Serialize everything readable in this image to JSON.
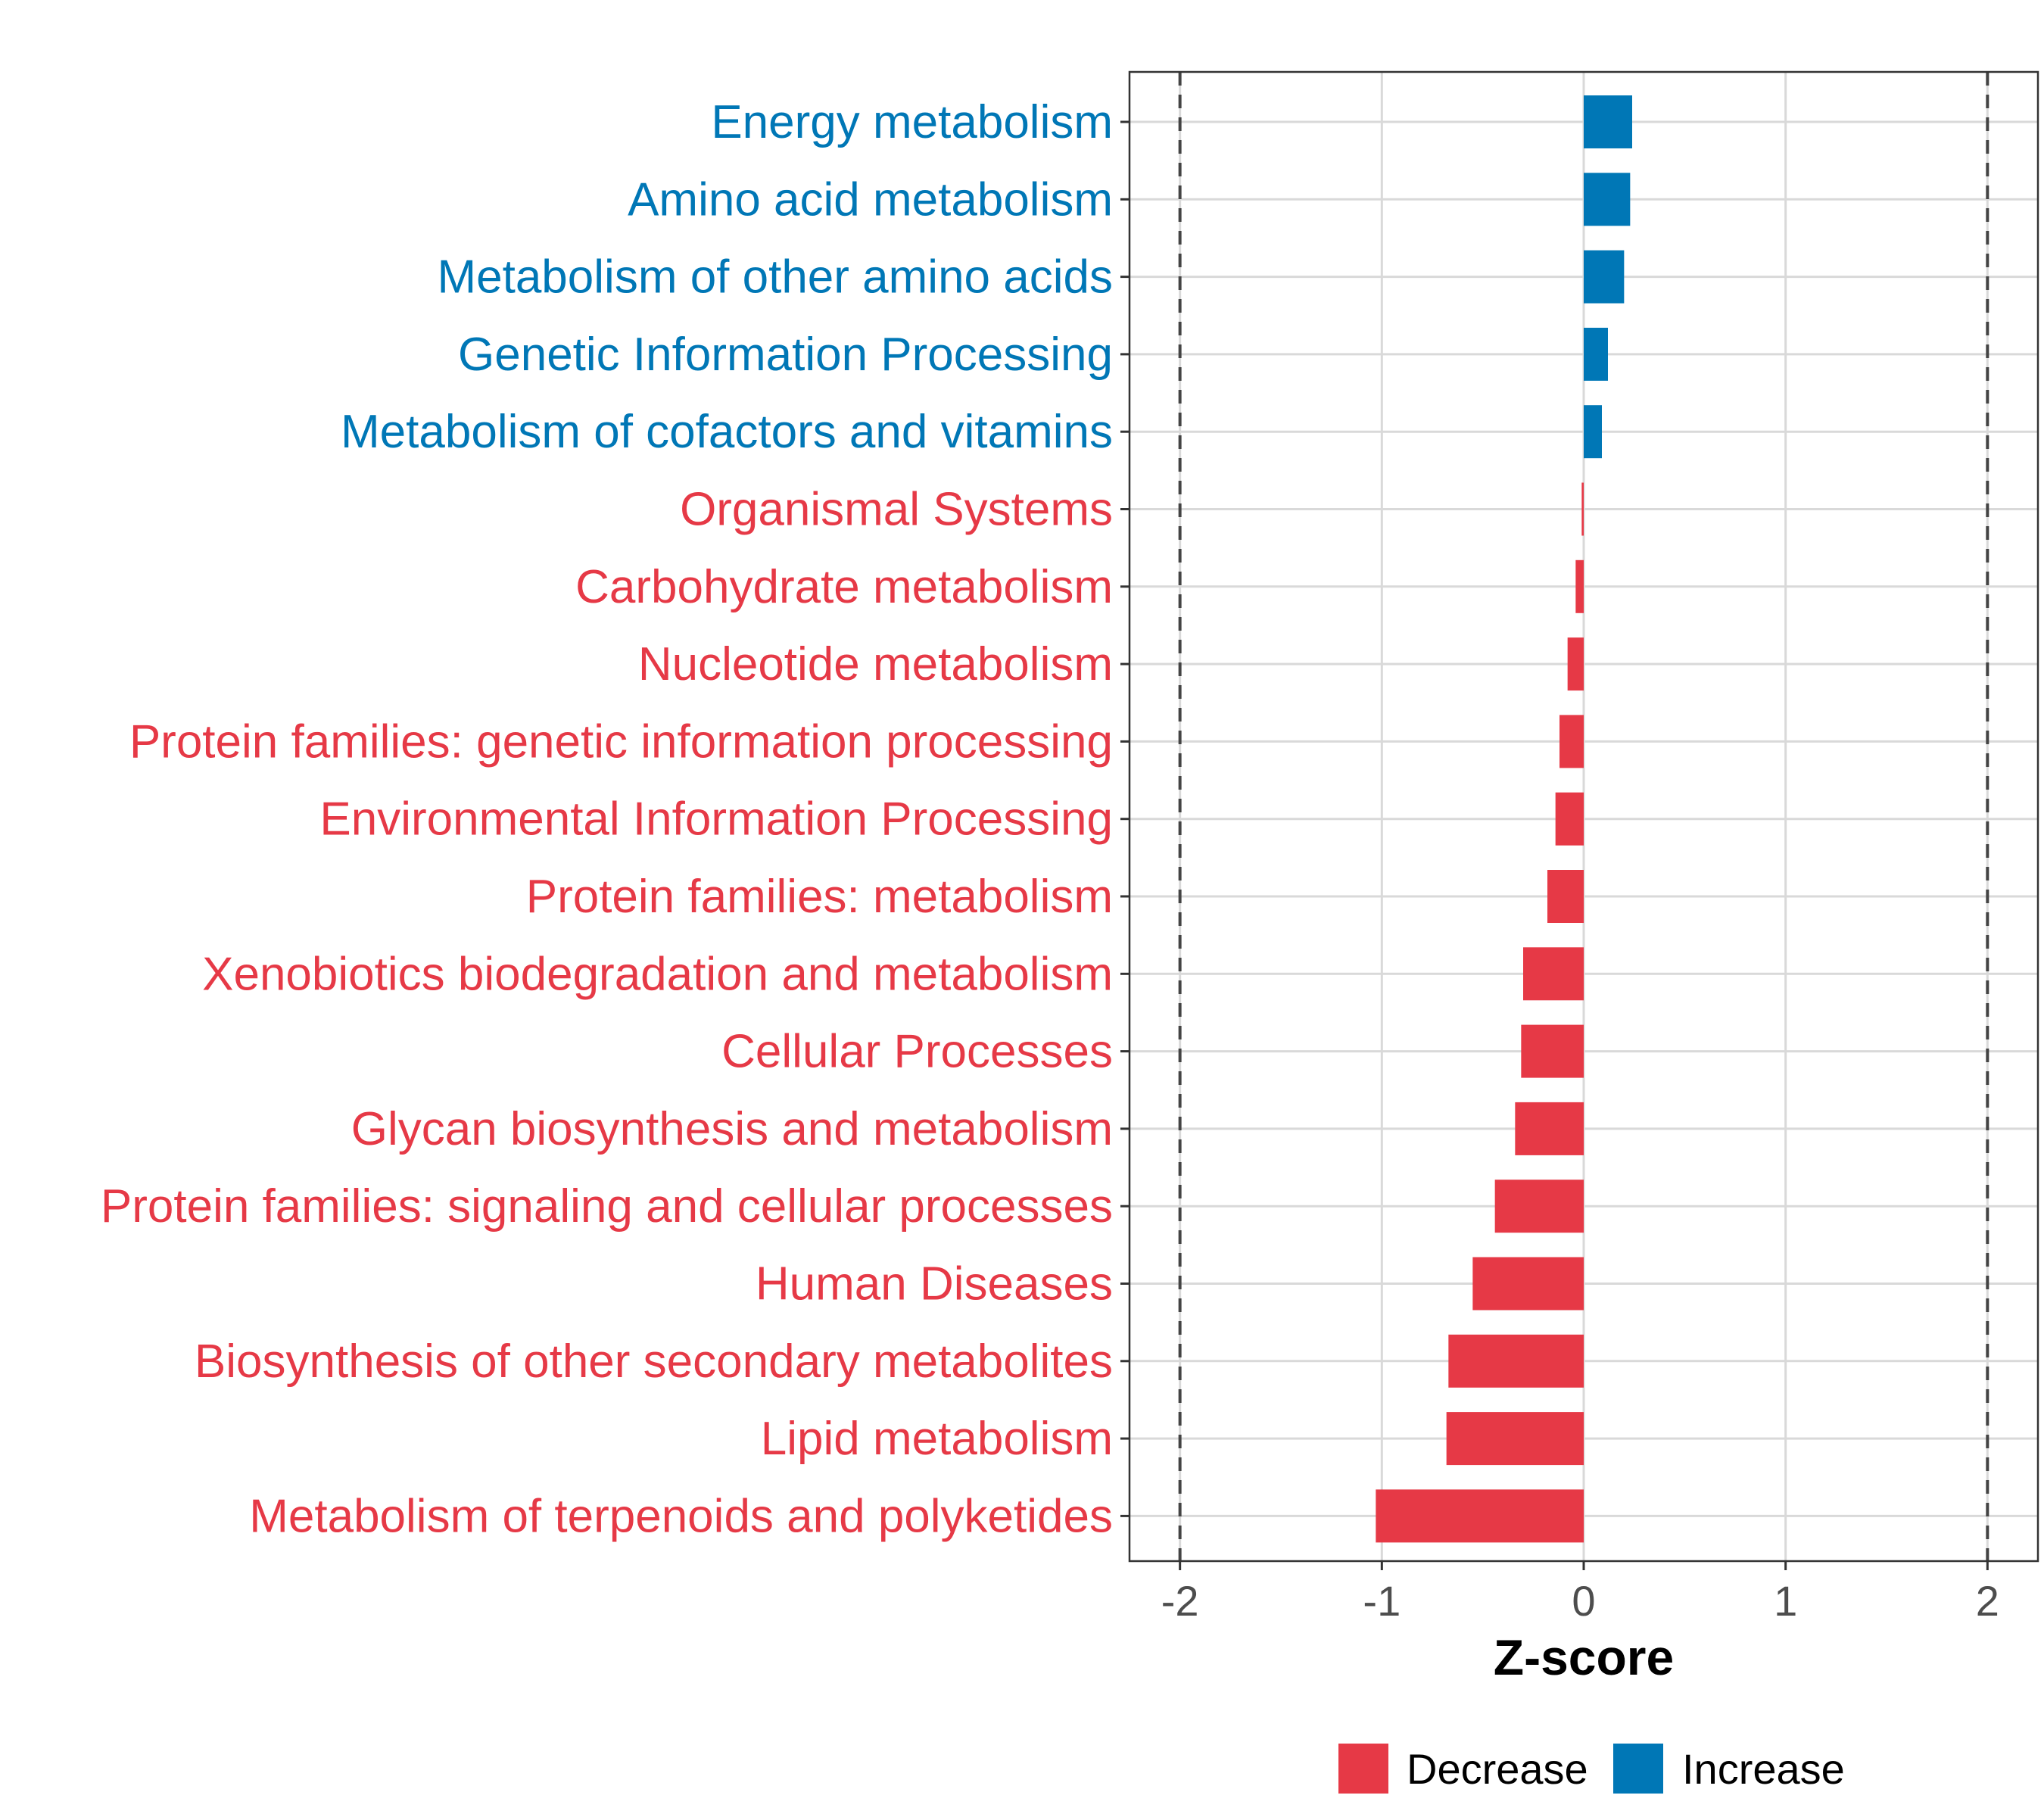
{
  "chart_data": {
    "type": "bar",
    "orientation": "horizontal",
    "xlabel": "Z-score",
    "xlim": [
      -2.25,
      2.25
    ],
    "x_ticks": [
      -2,
      -1,
      0,
      1,
      2
    ],
    "x_tick_labels": [
      "-2",
      "-1",
      "0",
      "1",
      "2"
    ],
    "reference_lines": [
      -2,
      2
    ],
    "grid": true,
    "legend_position": "bottom",
    "legend": [
      {
        "label": "Decrease",
        "color": "#E63946"
      },
      {
        "label": "Increase",
        "color": "#0077B6"
      }
    ],
    "categories": [
      "Energy metabolism",
      "Amino acid metabolism",
      "Metabolism of other amino acids",
      "Genetic Information Processing",
      "Metabolism of cofactors and vitamins",
      "Organismal Systems",
      "Carbohydrate metabolism",
      "Nucleotide metabolism",
      "Protein families: genetic information processing",
      "Environmental Information Processing",
      "Protein families: metabolism",
      "Xenobiotics biodegradation and metabolism",
      "Cellular Processes",
      "Glycan biosynthesis and metabolism",
      "Protein families: signaling and cellular processes",
      "Human Diseases",
      "Biosynthesis of other secondary metabolites",
      "Lipid metabolism",
      "Metabolism of terpenoids and polyketides"
    ],
    "values": [
      0.24,
      0.23,
      0.2,
      0.12,
      0.09,
      -0.01,
      -0.04,
      -0.08,
      -0.12,
      -0.14,
      -0.18,
      -0.3,
      -0.31,
      -0.34,
      -0.44,
      -0.55,
      -0.67,
      -0.68,
      -1.03
    ],
    "groups": [
      "Increase",
      "Increase",
      "Increase",
      "Increase",
      "Increase",
      "Decrease",
      "Decrease",
      "Decrease",
      "Decrease",
      "Decrease",
      "Decrease",
      "Decrease",
      "Decrease",
      "Decrease",
      "Decrease",
      "Decrease",
      "Decrease",
      "Decrease",
      "Decrease"
    ]
  }
}
